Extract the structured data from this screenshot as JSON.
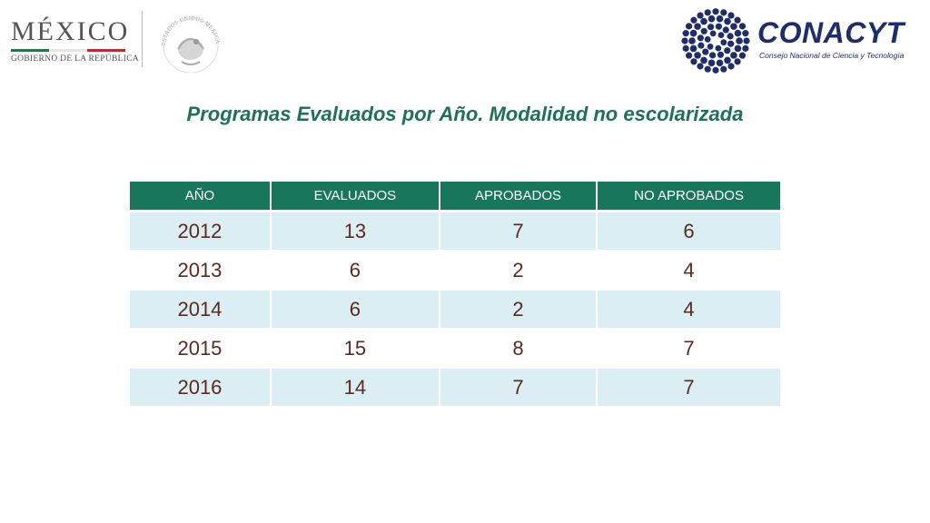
{
  "header": {
    "mexico_word": "MÉXICO",
    "mexico_sub": "GOBIERNO DE LA REPÚBLICA",
    "seal_text": "ESTADOS UNIDOS MEXICANOS",
    "conacyt_word": "CONACYT",
    "conacyt_sub": "Consejo Nacional de Ciencia y Tecnología",
    "colors": {
      "mexico_green": "#1f7a4a",
      "mexico_red": "#c9262c",
      "conacyt_blue": "#1f2e6b"
    }
  },
  "title": "Programas Evaluados por Año. Modalidad no escolarizada",
  "table": {
    "columns": [
      "AÑO",
      "EVALUADOS",
      "APROBADOS",
      "NO APROBADOS"
    ],
    "rows": [
      [
        "2012",
        "13",
        "7",
        "6"
      ],
      [
        "2013",
        "6",
        "2",
        "4"
      ],
      [
        "2014",
        "6",
        "2",
        "4"
      ],
      [
        "2015",
        "15",
        "8",
        "7"
      ],
      [
        "2016",
        "14",
        "7",
        "7"
      ]
    ],
    "colors": {
      "header_bg": "#18765a",
      "row_alt_bg": "#dbeef4",
      "value_text": "#5b2a1d"
    }
  },
  "icons": {
    "seal": "national-seal-icon",
    "conacyt_mark": "conacyt-dot-globe-icon"
  }
}
